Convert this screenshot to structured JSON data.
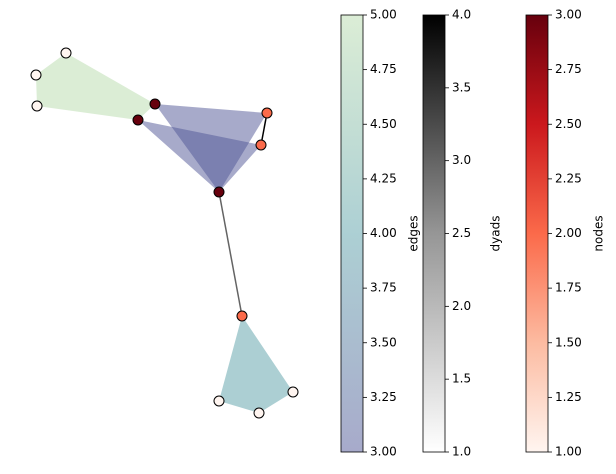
{
  "chart_data": {
    "type": "hypergraph",
    "nodes": {
      "values": [
        1,
        1,
        1,
        3,
        3,
        2,
        2,
        3,
        2,
        1,
        1,
        1
      ],
      "cmap": "Reds",
      "label": "nodes",
      "lim": [
        1,
        3
      ],
      "ticks": [
        {
          "value": 1,
          "label": "1.00"
        },
        {
          "value": 1.25,
          "label": "1.25"
        },
        {
          "value": 1.5,
          "label": "1.50"
        },
        {
          "value": 1.75,
          "label": "1.75"
        },
        {
          "value": 2,
          "label": "2.00"
        },
        {
          "value": 2.25,
          "label": "2.25"
        },
        {
          "value": 2.5,
          "label": "2.50"
        },
        {
          "value": 2.75,
          "label": "2.75"
        },
        {
          "value": 3,
          "label": "3.00"
        }
      ]
    },
    "edges": {
      "members": [
        [
          0,
          1,
          2,
          4,
          3
        ],
        [
          3,
          5,
          7
        ],
        [
          4,
          6,
          7
        ],
        [
          8,
          11,
          10,
          9
        ]
      ],
      "values": [
        5,
        3,
        3,
        4
      ],
      "cmap": "crest",
      "label": "edges",
      "lim": [
        3,
        5
      ],
      "ticks": [
        {
          "value": 3,
          "label": "3.00"
        },
        {
          "value": 3.25,
          "label": "3.25"
        },
        {
          "value": 3.5,
          "label": "3.50"
        },
        {
          "value": 3.75,
          "label": "3.75"
        },
        {
          "value": 4,
          "label": "4.00"
        },
        {
          "value": 4.25,
          "label": "4.25"
        },
        {
          "value": 4.5,
          "label": "4.50"
        },
        {
          "value": 4.75,
          "label": "4.75"
        },
        {
          "value": 5,
          "label": "5.00"
        }
      ]
    },
    "dyads": {
      "members": [
        [
          5,
          6
        ],
        [
          7,
          8
        ]
      ],
      "values": [
        4,
        3
      ],
      "cmap": "Greys",
      "label": "dyads",
      "lim": [
        1,
        4
      ],
      "ticks": [
        {
          "value": 1,
          "label": "1.0"
        },
        {
          "value": 1.5,
          "label": "1.5"
        },
        {
          "value": 2,
          "label": "2.0"
        },
        {
          "value": 2.5,
          "label": "2.5"
        },
        {
          "value": 3,
          "label": "3.0"
        },
        {
          "value": 3.5,
          "label": "3.5"
        },
        {
          "value": 4,
          "label": "4.0"
        }
      ]
    }
  }
}
